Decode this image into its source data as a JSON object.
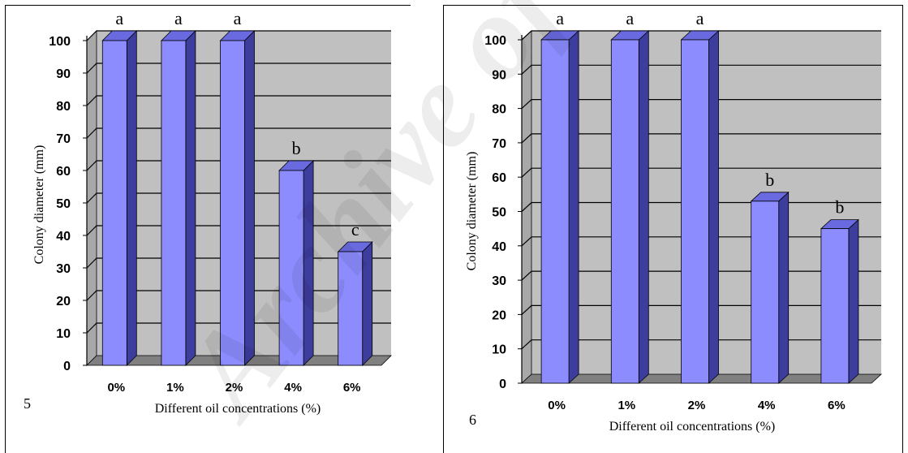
{
  "figure": {
    "panels": [
      {
        "panel_label": "5"
      },
      {
        "panel_label": "6"
      }
    ],
    "watermark_text": "Archive of SID"
  },
  "chart_data": [
    {
      "type": "bar",
      "categories": [
        "0%",
        "1%",
        "2%",
        "4%",
        "6%"
      ],
      "values": [
        100,
        100,
        100,
        60,
        35
      ],
      "significance_letters": [
        "a",
        "a",
        "a",
        "b",
        "c"
      ],
      "xlabel": "Different oil concentrations (%)",
      "ylabel": "Colony diameter (mm)",
      "ylim": [
        0,
        100
      ],
      "yticks": [
        "0",
        "10",
        "20",
        "30",
        "40",
        "50",
        "60",
        "70",
        "80",
        "90",
        "100"
      ],
      "grid": true,
      "colors": {
        "bar_front": "#8c8cff",
        "bar_side": "#3d3d9e",
        "bar_top": "#6a6ae0",
        "plot_back": "#c0c0c0",
        "plot_floor": "#808080"
      }
    },
    {
      "type": "bar",
      "categories": [
        "0%",
        "1%",
        "2%",
        "4%",
        "6%"
      ],
      "values": [
        100,
        100,
        100,
        53,
        45
      ],
      "significance_letters": [
        "a",
        "a",
        "a",
        "b",
        "b"
      ],
      "xlabel": "Different oil concentrations (%)",
      "ylabel": "Colony diameter (mm)",
      "ylim": [
        0,
        100
      ],
      "yticks": [
        "0",
        "10",
        "20",
        "30",
        "40",
        "50",
        "60",
        "70",
        "80",
        "90",
        "100"
      ],
      "grid": true,
      "colors": {
        "bar_front": "#8c8cff",
        "bar_side": "#3d3d9e",
        "bar_top": "#6a6ae0",
        "plot_back": "#c0c0c0",
        "plot_floor": "#808080"
      }
    }
  ]
}
